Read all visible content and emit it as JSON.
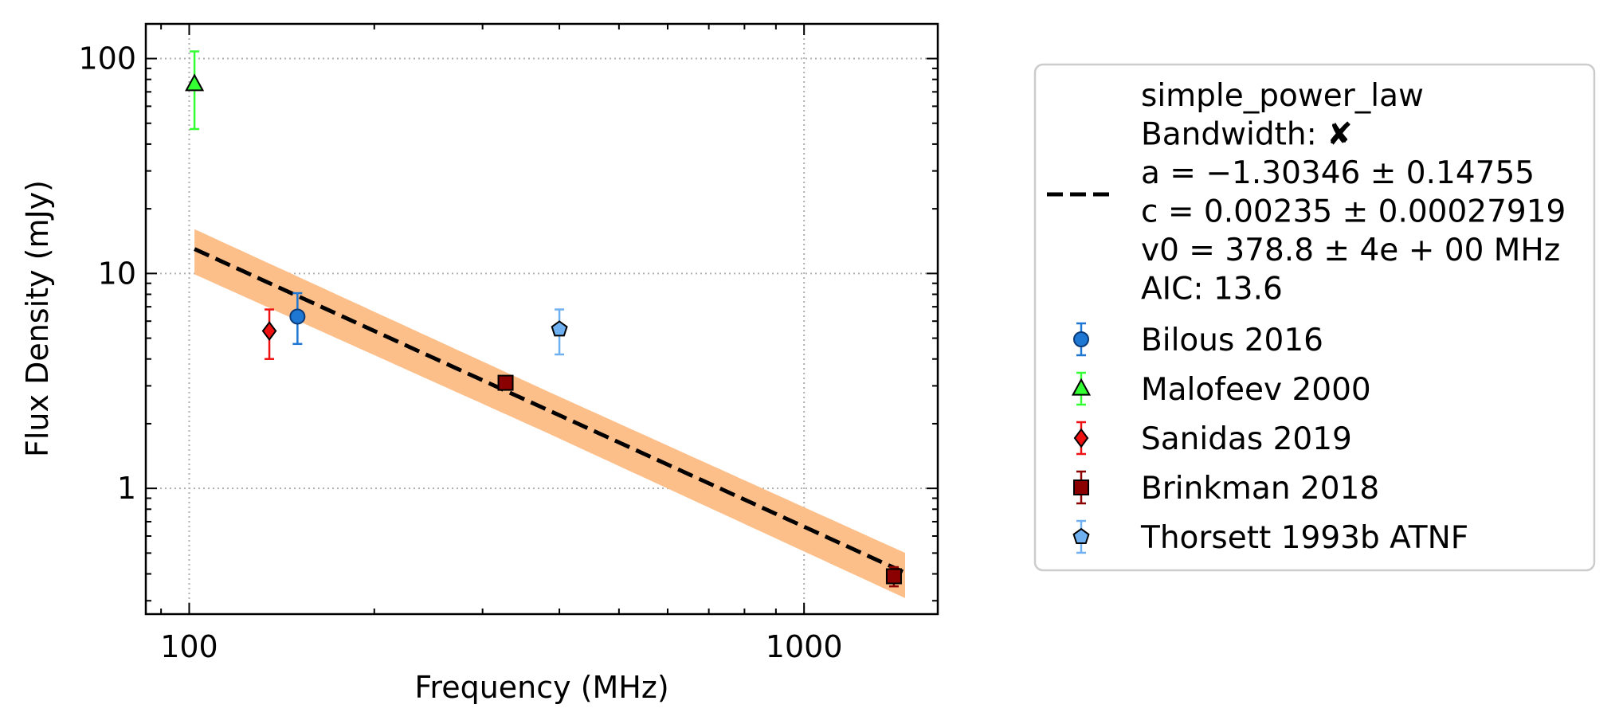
{
  "chart_data": {
    "type": "scatter",
    "xlabel": "Frequency (MHz)",
    "ylabel": "Flux Density (mJy)",
    "x_scale": "log",
    "y_scale": "log",
    "xlim": [
      85,
      1650
    ],
    "ylim": [
      0.26,
      145
    ],
    "x_ticks": [
      {
        "value": 100,
        "label": "100"
      },
      {
        "value": 1000,
        "label": "1000"
      }
    ],
    "y_ticks": [
      {
        "value": 1,
        "label": "1"
      },
      {
        "value": 10,
        "label": "10"
      },
      {
        "value": 100,
        "label": "100"
      }
    ],
    "grid": true,
    "legend_position": "outside-right",
    "fit": {
      "model": "simple_power_law",
      "bandwidth": "Bandwidth: ✘",
      "lines": [
        "simple_power_law",
        "Bandwidth: ✘",
        "a = −1.30346 ± 0.14755",
        "c = 0.00235 ± 0.00027919",
        "v0 = 378.8 ± 4e + 00 MHz",
        "AIC: 13.6"
      ],
      "a": -1.30346,
      "c": 0.00235,
      "v0": 378.8,
      "x_range": [
        102,
        1460
      ],
      "color": "#000000",
      "band_color": "#fdbf8a",
      "band_fraction_low": 0.22,
      "band_fraction_high": 0.25
    },
    "series": [
      {
        "name": "Bilous 2016",
        "marker": "circle",
        "color": "#1f77d4",
        "edge": "#0b3a78",
        "points": [
          {
            "x": 150,
            "y": 6.3,
            "yerr_low": 1.6,
            "yerr_high": 1.8
          }
        ]
      },
      {
        "name": "Malofeev 2000",
        "marker": "triangle",
        "color": "#33ff33",
        "edge": "#000000",
        "points": [
          {
            "x": 102,
            "y": 76,
            "yerr_low": 29,
            "yerr_high": 32
          }
        ]
      },
      {
        "name": "Sanidas 2019",
        "marker": "diamond",
        "color": "#ee1111",
        "edge": "#000000",
        "points": [
          {
            "x": 135,
            "y": 5.4,
            "yerr_low": 1.4,
            "yerr_high": 1.4
          }
        ]
      },
      {
        "name": "Brinkman 2018",
        "marker": "square",
        "color": "#8b0000",
        "edge": "#000000",
        "points": [
          {
            "x": 327,
            "y": 3.1,
            "yerr_low": 0.15,
            "yerr_high": 0.15
          },
          {
            "x": 1400,
            "y": 0.39,
            "yerr_low": 0.04,
            "yerr_high": 0.04
          }
        ]
      },
      {
        "name": "Thorsett 1993b ATNF",
        "marker": "pentagon",
        "color": "#6fb0f0",
        "edge": "#000000",
        "points": [
          {
            "x": 400,
            "y": 5.5,
            "yerr_low": 1.3,
            "yerr_high": 1.3
          }
        ]
      }
    ]
  }
}
